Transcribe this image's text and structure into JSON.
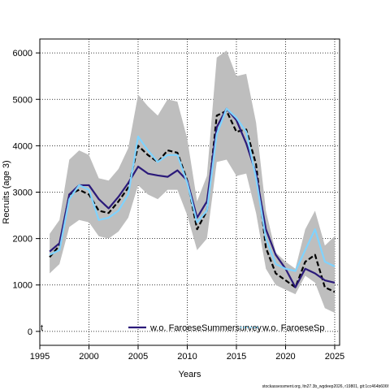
{
  "chart_data": {
    "type": "line",
    "xlabel": "Years",
    "ylabel": "Recruits (age 3)",
    "xlim": [
      1995,
      2025.5
    ],
    "ylim": [
      -300,
      6300
    ],
    "xticks": [
      1995,
      2000,
      2005,
      2010,
      2015,
      2020,
      2025
    ],
    "yticks": [
      0,
      1000,
      2000,
      3000,
      4000,
      5000,
      6000
    ],
    "grid": true,
    "legend_position": "bottom",
    "colors": {
      "band": "#bebebe",
      "baseline": "#000000",
      "summer": "#2b1a7a",
      "spring": "#7fd3ff"
    },
    "x": [
      1996,
      1997,
      1998,
      1999,
      2000,
      2001,
      2002,
      2003,
      2004,
      2005,
      2006,
      2007,
      2008,
      2009,
      2010,
      2011,
      2012,
      2013,
      2014,
      2015,
      2016,
      2017,
      2018,
      2019,
      2020,
      2021,
      2022,
      2023,
      2024,
      2025
    ],
    "band": {
      "upper": [
        2100,
        2400,
        3700,
        3900,
        3800,
        3300,
        3250,
        3500,
        3950,
        5100,
        4850,
        4650,
        5000,
        4950,
        4150,
        2800,
        3350,
        5900,
        6050,
        5500,
        5550,
        4500,
        2600,
        1700,
        1500,
        1350,
        2200,
        2600,
        1850,
        2050
      ],
      "lower": [
        1250,
        1450,
        2250,
        2400,
        2350,
        2050,
        2000,
        2150,
        2450,
        3150,
        2950,
        2850,
        3050,
        3050,
        2500,
        1750,
        2000,
        3650,
        3700,
        3350,
        3400,
        2550,
        1350,
        1000,
        900,
        800,
        1200,
        1050,
        500,
        400
      ]
    },
    "series": [
      {
        "name": "",
        "style": "dashed",
        "values": [
          1600,
          1850,
          2950,
          3050,
          2950,
          2600,
          2550,
          2800,
          3100,
          4000,
          3800,
          3650,
          3900,
          3850,
          3250,
          2200,
          2600,
          4650,
          4750,
          4300,
          4350,
          3600,
          1800,
          1250,
          1100,
          950,
          1500,
          1650,
          950,
          850
        ]
      },
      {
        "name": "w.o. FaroeseSummersurvey",
        "style": "solid",
        "values": [
          1720,
          1900,
          2950,
          3150,
          3150,
          2850,
          2650,
          2900,
          3200,
          3550,
          3400,
          3360,
          3330,
          3470,
          3250,
          2450,
          2800,
          4400,
          4800,
          4550,
          4050,
          3400,
          2200,
          1650,
          1350,
          950,
          1350,
          1250,
          1100,
          1050
        ]
      },
      {
        "name": "w.o. FaroeseSpringsurvey",
        "style": "solid",
        "values": [
          1650,
          1750,
          2850,
          3150,
          3050,
          2400,
          2450,
          2600,
          2950,
          4200,
          3900,
          3650,
          3800,
          3800,
          3200,
          2350,
          2600,
          4250,
          4800,
          4600,
          4300,
          3300,
          2000,
          1450,
          1350,
          1300,
          1750,
          2200,
          1500,
          1400
        ]
      }
    ],
    "legend": [
      {
        "label": "t",
        "style": "dashed"
      },
      {
        "label": "w.o. FaroeseSummersurvey",
        "style": "solid"
      },
      {
        "label": "w.o. FaroeseSp",
        "style": "dotted"
      }
    ],
    "footer": "stockassessment.org, ltn27.3b_wgdeep2026, r19801, git:1cc464b606f"
  }
}
